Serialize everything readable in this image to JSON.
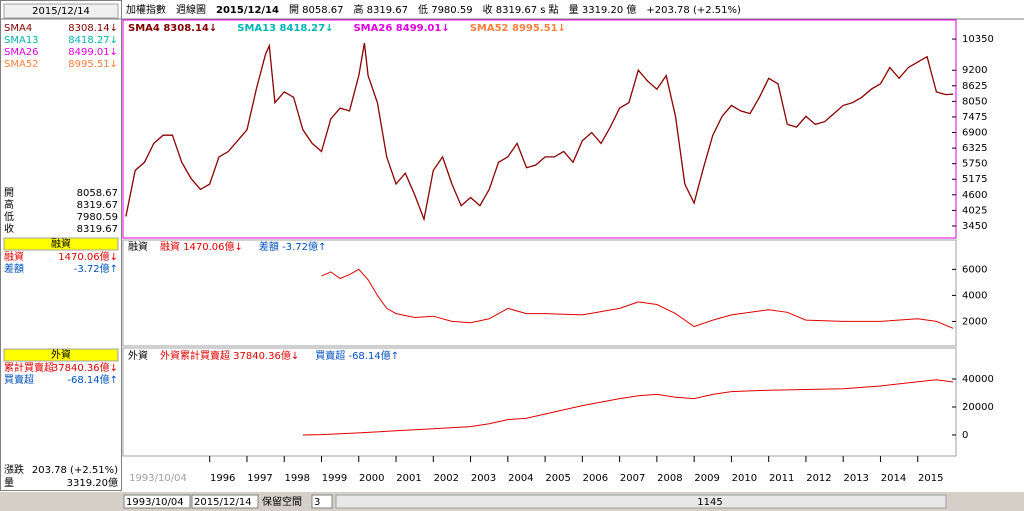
{
  "header": {
    "items": [
      "加權指數",
      "週線圖",
      "2015/12/14",
      "開 8058.67",
      "高 8319.67",
      "低 7980.59",
      "收 8319.67 s 點",
      "量 3319.20 億",
      "+203.78 (+2.51%)"
    ]
  },
  "sidebar": {
    "date": "2015/12/14",
    "sma": [
      {
        "name": "SMA4",
        "value": "8308.14↓",
        "color": "#800000"
      },
      {
        "name": "SMA13",
        "value": "8418.27↓",
        "color": "#00b4b4"
      },
      {
        "name": "SMA26",
        "value": "8499.01↓",
        "color": "#e000e0"
      },
      {
        "name": "SMA52",
        "value": "8995.51↓",
        "color": "#ff8040"
      }
    ],
    "ohlc": [
      [
        "開",
        "8058.67"
      ],
      [
        "高",
        "8319.67"
      ],
      [
        "低",
        "7980.59"
      ],
      [
        "收",
        "8319.67"
      ]
    ],
    "margin": {
      "title": "融資",
      "rows": [
        [
          "融資",
          "1470.06億↓"
        ],
        [
          "差額",
          "-3.72億↑"
        ]
      ]
    },
    "foreign": {
      "title": "外資",
      "rows": [
        [
          "累計買賣超",
          "37840.36億↓"
        ],
        [
          "買賣超",
          "-68.14億↑"
        ]
      ]
    },
    "summary": [
      [
        "漲跌",
        "203.78 (+2.51%)"
      ],
      [
        "量",
        "3319.20億"
      ]
    ]
  },
  "chart_data": [
    {
      "type": "line",
      "legend": [
        "SMA4 8308.14↓",
        "SMA13 8418.27↓",
        "SMA26 8499.01↓",
        "SMA52 8995.51↓"
      ],
      "color": "#8b0000",
      "x": [
        1993.75,
        1994.0,
        1994.25,
        1994.5,
        1994.75,
        1995.0,
        1995.25,
        1995.5,
        1995.75,
        1996.0,
        1996.25,
        1996.5,
        1996.75,
        1997.0,
        1997.25,
        1997.5,
        1997.6,
        1997.75,
        1998.0,
        1998.25,
        1998.5,
        1998.75,
        1999.0,
        1999.25,
        1999.5,
        1999.75,
        2000.0,
        2000.15,
        2000.25,
        2000.5,
        2000.75,
        2001.0,
        2001.25,
        2001.5,
        2001.75,
        2002.0,
        2002.25,
        2002.5,
        2002.75,
        2003.0,
        2003.25,
        2003.5,
        2003.75,
        2004.0,
        2004.25,
        2004.5,
        2004.75,
        2005.0,
        2005.25,
        2005.5,
        2005.75,
        2006.0,
        2006.25,
        2006.5,
        2006.75,
        2007.0,
        2007.25,
        2007.5,
        2007.75,
        2008.0,
        2008.25,
        2008.5,
        2008.75,
        2009.0,
        2009.25,
        2009.5,
        2009.75,
        2010.0,
        2010.25,
        2010.5,
        2010.75,
        2011.0,
        2011.25,
        2011.5,
        2011.75,
        2012.0,
        2012.25,
        2012.5,
        2012.75,
        2013.0,
        2013.25,
        2013.5,
        2013.75,
        2014.0,
        2014.25,
        2014.5,
        2014.75,
        2015.0,
        2015.25,
        2015.5,
        2015.75,
        2015.95
      ],
      "values": [
        3800,
        5500,
        5800,
        6500,
        6800,
        6800,
        5800,
        5200,
        4800,
        5000,
        6000,
        6200,
        6600,
        7000,
        8500,
        9800,
        10100,
        8000,
        8400,
        8200,
        7000,
        6500,
        6200,
        7400,
        7800,
        7700,
        9000,
        10200,
        9000,
        8000,
        6000,
        5000,
        5400,
        4600,
        3700,
        5500,
        6000,
        5000,
        4200,
        4500,
        4200,
        4800,
        5800,
        6000,
        6500,
        5600,
        5700,
        6000,
        6000,
        6200,
        5800,
        6600,
        6900,
        6500,
        7100,
        7800,
        8000,
        9200,
        8800,
        8500,
        9000,
        7500,
        5000,
        4300,
        5600,
        6800,
        7500,
        7900,
        7700,
        7600,
        8200,
        8900,
        8700,
        7200,
        7100,
        7500,
        7200,
        7300,
        7600,
        7900,
        8000,
        8200,
        8500,
        8700,
        9300,
        8900,
        9300,
        9500,
        9700,
        8400,
        8300,
        8319.67
      ],
      "xlim": [
        1993.7,
        2016.0
      ],
      "ylim": [
        3080,
        10980
      ],
      "yticks": [
        3450,
        4025,
        4600,
        5175,
        5750,
        6325,
        6900,
        7475,
        8050,
        8625,
        9200,
        10350
      ],
      "xstart": "1993/10/04",
      "xticks": [
        1996,
        1997,
        1998,
        1999,
        2000,
        2001,
        2002,
        2003,
        2004,
        2005,
        2006,
        2007,
        2008,
        2009,
        2010,
        2011,
        2012,
        2013,
        2014,
        2015
      ]
    },
    {
      "type": "line",
      "title": "融資",
      "legend": [
        "融資 1470.06億↓",
        "差額 -3.72億↑"
      ],
      "color": "#e00000",
      "x": [
        1999.0,
        1999.25,
        1999.5,
        1999.75,
        2000.0,
        2000.25,
        2000.5,
        2000.75,
        2001.0,
        2001.5,
        2002.0,
        2002.5,
        2003.0,
        2003.5,
        2004.0,
        2004.5,
        2005.0,
        2006.0,
        2007.0,
        2007.5,
        2008.0,
        2008.5,
        2009.0,
        2009.5,
        2010.0,
        2011.0,
        2011.5,
        2012.0,
        2013.0,
        2014.0,
        2015.0,
        2015.5,
        2015.95
      ],
      "values": [
        5500,
        5800,
        5300,
        5600,
        6000,
        5200,
        4000,
        3000,
        2600,
        2300,
        2400,
        2000,
        1900,
        2200,
        3000,
        2600,
        2600,
        2500,
        3000,
        3500,
        3300,
        2600,
        1600,
        2100,
        2500,
        2900,
        2700,
        2100,
        2000,
        2000,
        2200,
        2000,
        1470.06
      ],
      "xlim": [
        1993.7,
        2016.0
      ],
      "ylim": [
        190,
        8100
      ],
      "yticks": [
        2000,
        4000,
        6000
      ]
    },
    {
      "type": "line",
      "title": "外資",
      "legend": [
        "外資累計買賣超 37840.36億↓",
        "買賣超 -68.14億↑"
      ],
      "color": "#e00000",
      "x": [
        1998.5,
        1999.0,
        2000.0,
        2001.0,
        2002.0,
        2003.0,
        2003.5,
        2004.0,
        2004.5,
        2005.0,
        2006.0,
        2007.0,
        2007.5,
        2008.0,
        2008.5,
        2009.0,
        2009.5,
        2010.0,
        2011.0,
        2012.0,
        2013.0,
        2014.0,
        2015.0,
        2015.5,
        2015.95
      ],
      "values": [
        0,
        300,
        1500,
        3000,
        4500,
        6000,
        8000,
        11000,
        12000,
        15000,
        21000,
        26000,
        28000,
        29000,
        27000,
        26000,
        29000,
        31000,
        32000,
        32500,
        33000,
        35000,
        38000,
        39500,
        37840.36
      ],
      "xlim": [
        1993.7,
        2016.0
      ],
      "ylim": [
        -14300,
        60700
      ],
      "yticks": [
        0,
        20000,
        40000
      ]
    }
  ],
  "footer": {
    "from": "1993/10/04",
    "to": "2015/12/14",
    "reserve": "保留空間",
    "reserve_value": "3",
    "count": "1145"
  }
}
